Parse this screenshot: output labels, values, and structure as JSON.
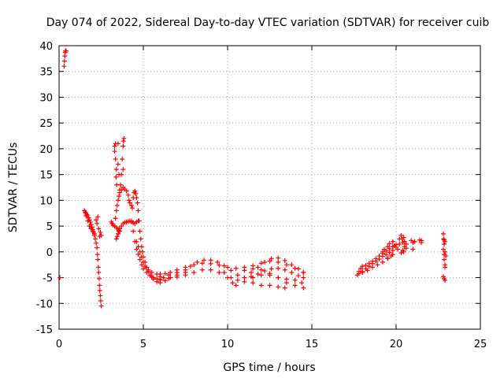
{
  "chart_data": {
    "type": "scatter",
    "title": "Day 074 of 2022, Sidereal Day-to-day VTEC variation (SDTVAR) for receiver cuib",
    "xlabel": "GPS time / hours",
    "ylabel": "SDTVAR / TECUs",
    "xlim": [
      0,
      25
    ],
    "ylim": [
      -15,
      40
    ],
    "xticks": [
      0,
      5,
      10,
      15,
      20,
      25
    ],
    "yticks": [
      -15,
      -10,
      -5,
      0,
      5,
      10,
      15,
      20,
      25,
      30,
      35,
      40
    ],
    "grid": true,
    "marker": "+",
    "marker_color": "#ff0000",
    "series": [
      {
        "name": "SDTVAR",
        "points": [
          [
            0.05,
            -5
          ],
          [
            0.3,
            36
          ],
          [
            0.32,
            37
          ],
          [
            0.34,
            38
          ],
          [
            0.36,
            38.7
          ],
          [
            0.38,
            39
          ],
          [
            0.42,
            39
          ],
          [
            1.5,
            8
          ],
          [
            1.55,
            7.7
          ],
          [
            1.6,
            7.5
          ],
          [
            1.65,
            7.2
          ],
          [
            1.7,
            7
          ],
          [
            1.75,
            6.6
          ],
          [
            1.8,
            6.2
          ],
          [
            1.85,
            5.8
          ],
          [
            1.9,
            5.3
          ],
          [
            1.95,
            4.8
          ],
          [
            2.0,
            4.3
          ],
          [
            2.05,
            3.8
          ],
          [
            2.1,
            3.2
          ],
          [
            2.15,
            2.5
          ],
          [
            2.2,
            1.7
          ],
          [
            2.25,
            0.8
          ],
          [
            2.28,
            -0.5
          ],
          [
            2.3,
            -1.5
          ],
          [
            2.33,
            -3
          ],
          [
            2.35,
            -4
          ],
          [
            2.38,
            -5.2
          ],
          [
            2.4,
            -6.5
          ],
          [
            2.42,
            -7.5
          ],
          [
            2.45,
            -8.5
          ],
          [
            2.47,
            -9.5
          ],
          [
            2.5,
            -10.5
          ],
          [
            1.6,
            7
          ],
          [
            1.7,
            6
          ],
          [
            1.8,
            5
          ],
          [
            1.9,
            4.5
          ],
          [
            2.0,
            4
          ],
          [
            2.1,
            3.5
          ],
          [
            2.2,
            6.2
          ],
          [
            2.25,
            5.5
          ],
          [
            2.3,
            6.8
          ],
          [
            2.35,
            4.5
          ],
          [
            2.4,
            3
          ],
          [
            2.45,
            3.8
          ],
          [
            2.5,
            3.2
          ],
          [
            3.1,
            5.8
          ],
          [
            3.15,
            5.5
          ],
          [
            3.2,
            5.2
          ],
          [
            3.3,
            5
          ],
          [
            3.4,
            4.7
          ],
          [
            3.5,
            4.5
          ],
          [
            3.55,
            4.2
          ],
          [
            3.6,
            4
          ],
          [
            3.4,
            2.5
          ],
          [
            3.45,
            3
          ],
          [
            3.5,
            3.5
          ],
          [
            3.55,
            4
          ],
          [
            3.6,
            4.5
          ],
          [
            3.7,
            5
          ],
          [
            3.8,
            5.5
          ],
          [
            3.9,
            5.7
          ],
          [
            4.0,
            5.8
          ],
          [
            4.1,
            5.9
          ],
          [
            4.2,
            6
          ],
          [
            4.3,
            5.8
          ],
          [
            4.4,
            5.6
          ],
          [
            4.5,
            5.5
          ],
          [
            4.6,
            5.8
          ],
          [
            4.7,
            6
          ],
          [
            3.3,
            20.5
          ],
          [
            3.35,
            21
          ],
          [
            3.3,
            19.5
          ],
          [
            3.35,
            18
          ],
          [
            3.4,
            16
          ],
          [
            3.38,
            14.5
          ],
          [
            3.42,
            13
          ],
          [
            3.5,
            21
          ],
          [
            3.5,
            17
          ],
          [
            3.55,
            15
          ],
          [
            3.6,
            12
          ],
          [
            3.65,
            13
          ],
          [
            3.7,
            15
          ],
          [
            3.8,
            20.5
          ],
          [
            3.82,
            21.5
          ],
          [
            3.85,
            22
          ],
          [
            3.75,
            18
          ],
          [
            3.8,
            16
          ],
          [
            3.3,
            5
          ],
          [
            3.35,
            6.5
          ],
          [
            3.4,
            8
          ],
          [
            3.45,
            9
          ],
          [
            3.5,
            10
          ],
          [
            3.55,
            10.8
          ],
          [
            3.6,
            11.5
          ],
          [
            3.7,
            12
          ],
          [
            3.8,
            12.5
          ],
          [
            3.9,
            12.2
          ],
          [
            4.0,
            11.8
          ],
          [
            4.1,
            11
          ],
          [
            4.15,
            10
          ],
          [
            4.2,
            9.5
          ],
          [
            4.3,
            9
          ],
          [
            4.35,
            8.5
          ],
          [
            4.4,
            10.5
          ],
          [
            4.45,
            11.5
          ],
          [
            4.5,
            11.8
          ],
          [
            4.55,
            11.3
          ],
          [
            4.6,
            10.5
          ],
          [
            4.65,
            9.5
          ],
          [
            4.7,
            8
          ],
          [
            4.75,
            6
          ],
          [
            4.8,
            4
          ],
          [
            4.85,
            2.5
          ],
          [
            4.9,
            1
          ],
          [
            4.95,
            0
          ],
          [
            5.0,
            -1
          ],
          [
            5.1,
            -2
          ],
          [
            5.2,
            -3
          ],
          [
            5.3,
            -3.8
          ],
          [
            5.4,
            -4.5
          ],
          [
            5.6,
            -5.3
          ],
          [
            5.8,
            -5.8
          ],
          [
            6.0,
            -6
          ],
          [
            6.3,
            -5.6
          ],
          [
            6.6,
            -5
          ],
          [
            7.0,
            -4.5
          ],
          [
            7.5,
            -4
          ],
          [
            4.3,
            6
          ],
          [
            4.4,
            4
          ],
          [
            4.5,
            2
          ],
          [
            4.6,
            0.5
          ],
          [
            4.7,
            -0.5
          ],
          [
            4.8,
            -1.5
          ],
          [
            4.9,
            -2.5
          ],
          [
            5.0,
            -3.3
          ],
          [
            5.2,
            -4
          ],
          [
            5.4,
            -4.6
          ],
          [
            5.6,
            -5
          ],
          [
            5.8,
            -5.2
          ],
          [
            6.0,
            -5.3
          ],
          [
            6.2,
            -5
          ],
          [
            4.6,
            2
          ],
          [
            4.7,
            1
          ],
          [
            4.8,
            0
          ],
          [
            4.9,
            -1
          ],
          [
            5.0,
            -2
          ],
          [
            5.1,
            -2.8
          ],
          [
            5.3,
            -3.5
          ],
          [
            5.5,
            -4
          ],
          [
            5.8,
            -4.3
          ],
          [
            6.0,
            -4.3
          ],
          [
            6.3,
            -4.2
          ],
          [
            6.6,
            -4
          ],
          [
            7.0,
            -3.5
          ],
          [
            7.5,
            -3
          ],
          [
            8.0,
            -2.5
          ],
          [
            8.5,
            -2.2
          ],
          [
            9.0,
            -2.3
          ],
          [
            9.5,
            -2.6
          ],
          [
            10.0,
            -3
          ],
          [
            10.5,
            -3.2
          ],
          [
            11.0,
            -3
          ],
          [
            11.5,
            -2.7
          ],
          [
            12.0,
            -2.2
          ],
          [
            12.5,
            -1.8
          ],
          [
            13.0,
            -2
          ],
          [
            13.5,
            -2.5
          ],
          [
            14.0,
            -3.2
          ],
          [
            14.5,
            -4
          ],
          [
            5.5,
            -4.8
          ],
          [
            6.0,
            -4.8
          ],
          [
            6.5,
            -4.5
          ],
          [
            7.0,
            -4
          ],
          [
            7.5,
            -3.5
          ],
          [
            7.8,
            -2.8
          ],
          [
            8.2,
            -2
          ],
          [
            8.6,
            -1.6
          ],
          [
            9.0,
            -1.6
          ],
          [
            9.4,
            -2
          ],
          [
            9.8,
            -2.7
          ],
          [
            10.2,
            -3.6
          ],
          [
            10.6,
            -4.5
          ],
          [
            11.0,
            -5
          ],
          [
            11.4,
            -4.8
          ],
          [
            11.8,
            -4.3
          ],
          [
            12.2,
            -3.7
          ],
          [
            12.6,
            -3.3
          ],
          [
            13.0,
            -3.2
          ],
          [
            13.4,
            -3.5
          ],
          [
            13.8,
            -4
          ],
          [
            14.2,
            -4.6
          ],
          [
            14.5,
            -5
          ],
          [
            6.0,
            -5.5
          ],
          [
            6.5,
            -5.2
          ],
          [
            7.0,
            -4.9
          ],
          [
            7.5,
            -4.5
          ],
          [
            8.0,
            -4
          ],
          [
            8.5,
            -3.5
          ],
          [
            9.0,
            -3.5
          ],
          [
            9.5,
            -4
          ],
          [
            10.0,
            -5
          ],
          [
            10.3,
            -6
          ],
          [
            10.5,
            -6.5
          ],
          [
            11.0,
            -5.8
          ],
          [
            11.5,
            -5
          ],
          [
            12.0,
            -4.5
          ],
          [
            12.5,
            -4.5
          ],
          [
            13.0,
            -5
          ],
          [
            13.5,
            -6
          ],
          [
            14.0,
            -6.5
          ],
          [
            14.5,
            -7
          ],
          [
            9.8,
            -4
          ],
          [
            10.2,
            -5
          ],
          [
            10.6,
            -5.5
          ],
          [
            11.0,
            -5
          ],
          [
            11.4,
            -4
          ],
          [
            11.8,
            -3
          ],
          [
            12.2,
            -2
          ],
          [
            12.6,
            -1.3
          ],
          [
            13.0,
            -1.2
          ],
          [
            13.4,
            -1.7
          ],
          [
            13.8,
            -2.5
          ],
          [
            14.2,
            -3.3
          ],
          [
            14.5,
            -4
          ],
          [
            11.0,
            -3.6
          ],
          [
            11.5,
            -3.3
          ],
          [
            12.0,
            -3.5
          ],
          [
            12.5,
            -4.2
          ],
          [
            13.0,
            -5
          ],
          [
            13.5,
            -5.3
          ],
          [
            14.0,
            -5.5
          ],
          [
            14.4,
            -6
          ],
          [
            11.5,
            -6
          ],
          [
            12.0,
            -6.5
          ],
          [
            12.5,
            -6.5
          ],
          [
            13.0,
            -6.8
          ],
          [
            13.4,
            -7
          ],
          [
            17.7,
            -4.5
          ],
          [
            17.8,
            -3.8
          ],
          [
            17.9,
            -3.2
          ],
          [
            18.0,
            -2.8
          ],
          [
            18.2,
            -2.6
          ],
          [
            18.4,
            -2.2
          ],
          [
            18.6,
            -1.8
          ],
          [
            18.8,
            -1.3
          ],
          [
            19.0,
            -0.8
          ],
          [
            19.2,
            -0.3
          ],
          [
            19.4,
            0.2
          ],
          [
            19.6,
            0.6
          ],
          [
            19.8,
            1
          ],
          [
            20.0,
            1.4
          ],
          [
            17.8,
            -4.2
          ],
          [
            18.0,
            -3.8
          ],
          [
            18.2,
            -3.3
          ],
          [
            18.4,
            -2.8
          ],
          [
            18.6,
            -2.3
          ],
          [
            18.8,
            -1.8
          ],
          [
            19.0,
            -1.4
          ],
          [
            19.2,
            -0.9
          ],
          [
            19.4,
            -0.5
          ],
          [
            19.6,
            -0.1
          ],
          [
            19.8,
            0.3
          ],
          [
            20.0,
            0.9
          ],
          [
            18.0,
            -4
          ],
          [
            18.3,
            -3.6
          ],
          [
            18.6,
            -3
          ],
          [
            18.9,
            -2.5
          ],
          [
            19.2,
            -2
          ],
          [
            19.5,
            -1.3
          ],
          [
            19.8,
            -0.5
          ],
          [
            19.2,
            0
          ],
          [
            19.3,
            0.5
          ],
          [
            19.5,
            1
          ],
          [
            19.6,
            1.6
          ],
          [
            19.8,
            2
          ],
          [
            19.9,
            1.2
          ],
          [
            19.7,
            -0.8
          ],
          [
            19.5,
            -1.2
          ],
          [
            20.1,
            0.5
          ],
          [
            20.2,
            1.5
          ],
          [
            20.2,
            2.5
          ],
          [
            20.3,
            3.2
          ],
          [
            20.35,
            2.5
          ],
          [
            20.4,
            1.8
          ],
          [
            20.45,
            2.8
          ],
          [
            20.5,
            2
          ],
          [
            20.5,
            1
          ],
          [
            20.45,
            0
          ],
          [
            20.6,
            1.5
          ],
          [
            20.6,
            0.7
          ],
          [
            20.3,
            -0.2
          ],
          [
            20.4,
            0.3
          ],
          [
            20.9,
            2.2
          ],
          [
            21.0,
            1.8
          ],
          [
            21.0,
            0.5
          ],
          [
            21.1,
            2
          ],
          [
            21.4,
            2.3
          ],
          [
            21.5,
            1.8
          ],
          [
            21.5,
            2.2
          ],
          [
            22.8,
            3.5
          ],
          [
            22.82,
            2.5
          ],
          [
            22.85,
            2.3
          ],
          [
            22.9,
            2
          ],
          [
            22.85,
            1.5
          ],
          [
            22.8,
            0.5
          ],
          [
            22.85,
            -0.5
          ],
          [
            22.9,
            0
          ],
          [
            22.95,
            -0.8
          ],
          [
            22.85,
            -1.5
          ],
          [
            22.9,
            -2.5
          ],
          [
            22.9,
            -3
          ],
          [
            22.8,
            -4.8
          ],
          [
            22.85,
            -5.2
          ],
          [
            22.9,
            -5.5
          ]
        ]
      }
    ]
  }
}
